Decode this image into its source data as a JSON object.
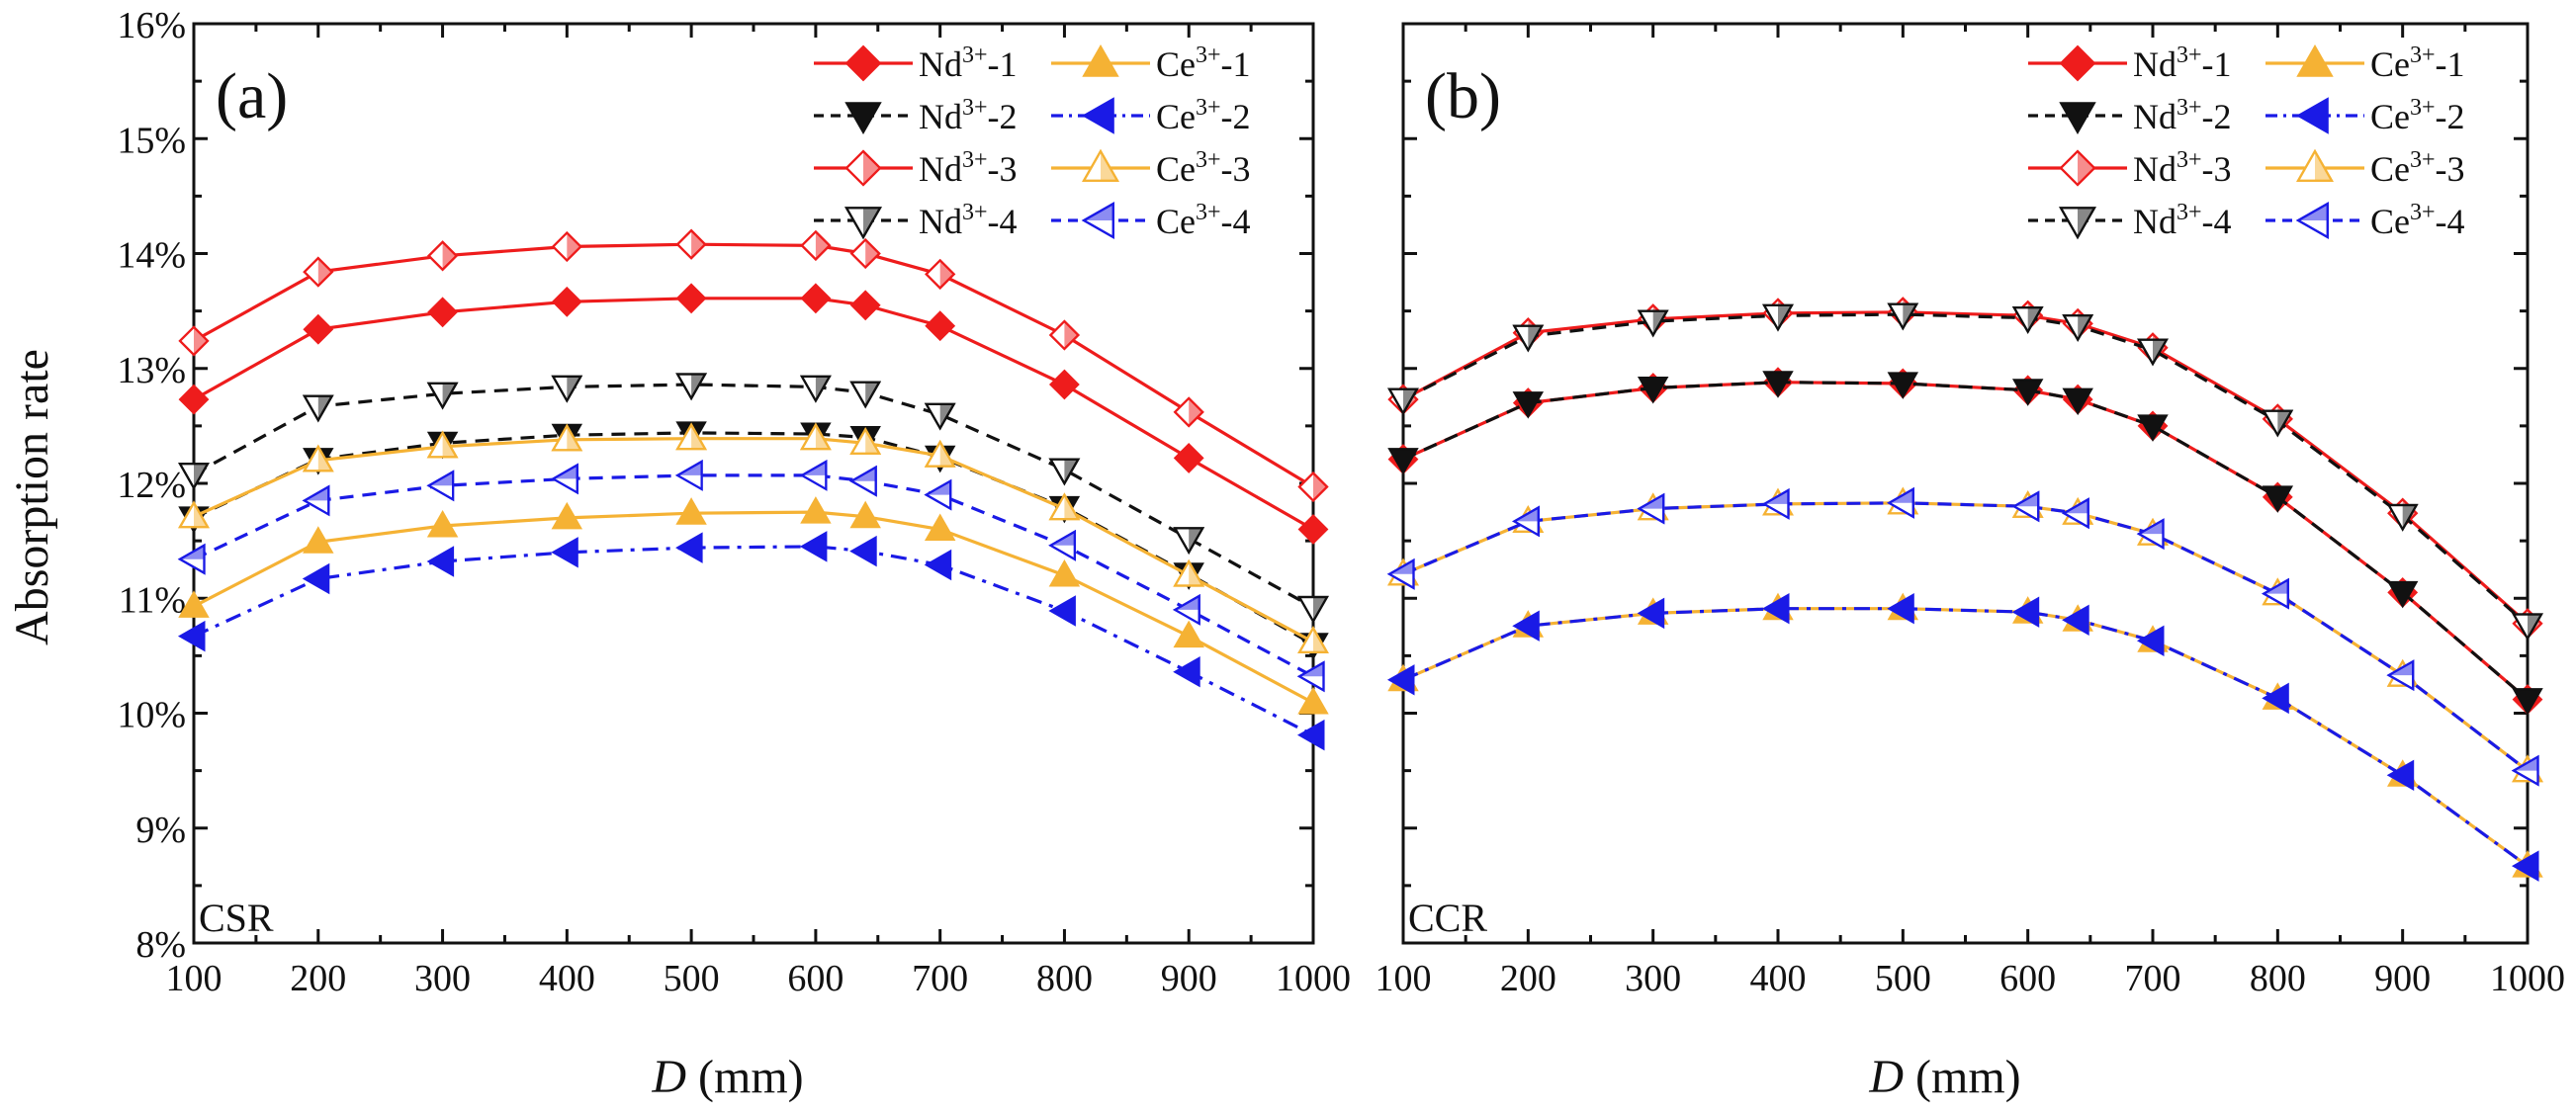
{
  "figure": {
    "y_axis_label": "Absorption rate",
    "x_axis_label_var": "D",
    "x_axis_label_unit": " (mm)"
  },
  "legend_entries": [
    {
      "key": "Nd1",
      "base": "Nd",
      "sup": "3+",
      "suffix": "-1"
    },
    {
      "key": "Ce1",
      "base": "Ce",
      "sup": "3+",
      "suffix": "-1"
    },
    {
      "key": "Nd2",
      "base": "Nd",
      "sup": "3+",
      "suffix": "-2"
    },
    {
      "key": "Ce2",
      "base": "Ce",
      "sup": "3+",
      "suffix": "-2"
    },
    {
      "key": "Nd3",
      "base": "Nd",
      "sup": "3+",
      "suffix": "-3"
    },
    {
      "key": "Ce3",
      "base": "Ce",
      "sup": "3+",
      "suffix": "-3"
    },
    {
      "key": "Nd4",
      "base": "Nd",
      "sup": "3+",
      "suffix": "-4"
    },
    {
      "key": "Ce4",
      "base": "Ce",
      "sup": "3+",
      "suffix": "-4"
    }
  ],
  "styles": {
    "Nd1": {
      "color": "#ee1c1c",
      "marker": "diamond",
      "fill": "full",
      "dash": "solid"
    },
    "Ce1": {
      "color": "#f5b234",
      "marker": "triangle-up",
      "fill": "full",
      "dash": "solid"
    },
    "Nd2": {
      "color": "#111111",
      "marker": "triangle-down",
      "fill": "full",
      "dash": "dashed"
    },
    "Ce2": {
      "color": "#1a1ae6",
      "marker": "triangle-left",
      "fill": "full",
      "dash": "dashdot"
    },
    "Nd3": {
      "color": "#ee1c1c",
      "marker": "diamond",
      "fill": "half",
      "dash": "solid"
    },
    "Ce3": {
      "color": "#f5b234",
      "marker": "triangle-up",
      "fill": "half",
      "dash": "solid"
    },
    "Nd4": {
      "color": "#111111",
      "marker": "triangle-down",
      "fill": "half",
      "dash": "dashed"
    },
    "Ce4": {
      "color": "#1a1ae6",
      "marker": "triangle-left",
      "fill": "half",
      "dash": "dashed"
    }
  },
  "chart_data": [
    {
      "type": "line",
      "panel": "(a)",
      "condition": "CSR",
      "xlabel": "D (mm)",
      "ylabel": "Absorption rate",
      "x": [
        100,
        200,
        300,
        400,
        500,
        600,
        640,
        700,
        800,
        900,
        1000
      ],
      "xticks": [
        100,
        200,
        300,
        400,
        500,
        600,
        700,
        800,
        900,
        1000
      ],
      "xlim": [
        100,
        1000
      ],
      "ylim": [
        8,
        16
      ],
      "yticks": [
        8,
        9,
        10,
        11,
        12,
        13,
        14,
        15,
        16
      ],
      "ytick_labels": [
        "8%",
        "9%",
        "10%",
        "11%",
        "12%",
        "13%",
        "14%",
        "15%",
        "16%"
      ],
      "series": [
        {
          "key": "Nd1",
          "name": "Nd3+-1",
          "values": [
            12.73,
            13.34,
            13.49,
            13.58,
            13.61,
            13.61,
            13.55,
            13.37,
            12.86,
            12.22,
            11.6
          ]
        },
        {
          "key": "Ce1",
          "name": "Ce3+-1",
          "values": [
            10.93,
            11.49,
            11.63,
            11.7,
            11.74,
            11.75,
            11.71,
            11.6,
            11.2,
            10.67,
            10.09
          ]
        },
        {
          "key": "Nd2",
          "name": "Nd3+-2",
          "values": [
            11.7,
            12.21,
            12.35,
            12.42,
            12.44,
            12.43,
            12.4,
            12.23,
            11.79,
            11.21,
            10.6
          ]
        },
        {
          "key": "Ce2",
          "name": "Ce3+-2",
          "values": [
            10.67,
            11.17,
            11.32,
            11.4,
            11.44,
            11.45,
            11.41,
            11.29,
            10.89,
            10.36,
            9.81
          ]
        },
        {
          "key": "Nd3",
          "name": "Nd3+-3",
          "values": [
            13.24,
            13.84,
            13.98,
            14.06,
            14.08,
            14.07,
            14.0,
            13.82,
            13.29,
            12.62,
            11.97
          ]
        },
        {
          "key": "Ce3",
          "name": "Ce3+-3",
          "values": [
            11.71,
            12.2,
            12.32,
            12.38,
            12.39,
            12.39,
            12.35,
            12.24,
            11.78,
            11.2,
            10.62
          ]
        },
        {
          "key": "Nd4",
          "name": "Nd3+-4",
          "values": [
            12.08,
            12.67,
            12.78,
            12.84,
            12.86,
            12.84,
            12.79,
            12.6,
            12.12,
            11.52,
            10.92
          ]
        },
        {
          "key": "Ce4",
          "name": "Ce3+-4",
          "values": [
            11.34,
            11.85,
            11.98,
            12.04,
            12.07,
            12.07,
            12.02,
            11.9,
            11.46,
            10.9,
            10.32
          ]
        }
      ]
    },
    {
      "type": "line",
      "panel": "(b)",
      "condition": "CCR",
      "xlabel": "D (mm)",
      "ylabel": "Absorption rate",
      "x": [
        100,
        200,
        300,
        400,
        500,
        600,
        640,
        700,
        800,
        900,
        1000
      ],
      "xticks": [
        100,
        200,
        300,
        400,
        500,
        600,
        700,
        800,
        900,
        1000
      ],
      "xlim": [
        100,
        1000
      ],
      "ylim": [
        8,
        16
      ],
      "yticks": [
        8,
        9,
        10,
        11,
        12,
        13,
        14,
        15,
        16
      ],
      "ytick_labels": [
        "8%",
        "9%",
        "10%",
        "11%",
        "12%",
        "13%",
        "14%",
        "15%",
        "16%"
      ],
      "series": [
        {
          "key": "Nd1",
          "name": "Nd3+-1",
          "values": [
            12.21,
            12.7,
            12.83,
            12.88,
            12.87,
            12.81,
            12.73,
            12.5,
            11.88,
            11.05,
            10.12
          ]
        },
        {
          "key": "Ce1",
          "name": "Ce3+-1",
          "values": [
            10.29,
            10.76,
            10.87,
            10.91,
            10.91,
            10.88,
            10.81,
            10.63,
            10.13,
            9.46,
            8.67
          ]
        },
        {
          "key": "Nd2",
          "name": "Nd3+-2",
          "values": [
            12.21,
            12.7,
            12.83,
            12.88,
            12.87,
            12.81,
            12.73,
            12.5,
            11.88,
            11.05,
            10.12
          ]
        },
        {
          "key": "Ce2",
          "name": "Ce3+-2",
          "values": [
            10.29,
            10.76,
            10.87,
            10.91,
            10.91,
            10.88,
            10.81,
            10.63,
            10.13,
            9.46,
            8.67
          ]
        },
        {
          "key": "Nd3",
          "name": "Nd3+-3",
          "values": [
            12.73,
            13.31,
            13.43,
            13.48,
            13.49,
            13.46,
            13.39,
            13.18,
            12.56,
            11.74,
            10.78
          ]
        },
        {
          "key": "Ce3",
          "name": "Ce3+-3",
          "values": [
            11.21,
            11.67,
            11.78,
            11.82,
            11.83,
            11.8,
            11.74,
            11.56,
            11.04,
            10.33,
            9.5
          ]
        },
        {
          "key": "Nd4",
          "name": "Nd3+-4",
          "values": [
            12.73,
            13.28,
            13.41,
            13.46,
            13.47,
            13.44,
            13.37,
            13.16,
            12.54,
            11.72,
            10.77
          ]
        },
        {
          "key": "Ce4",
          "name": "Ce3+-4",
          "values": [
            11.21,
            11.67,
            11.78,
            11.82,
            11.83,
            11.8,
            11.74,
            11.56,
            11.04,
            10.33,
            9.5
          ]
        }
      ]
    }
  ]
}
